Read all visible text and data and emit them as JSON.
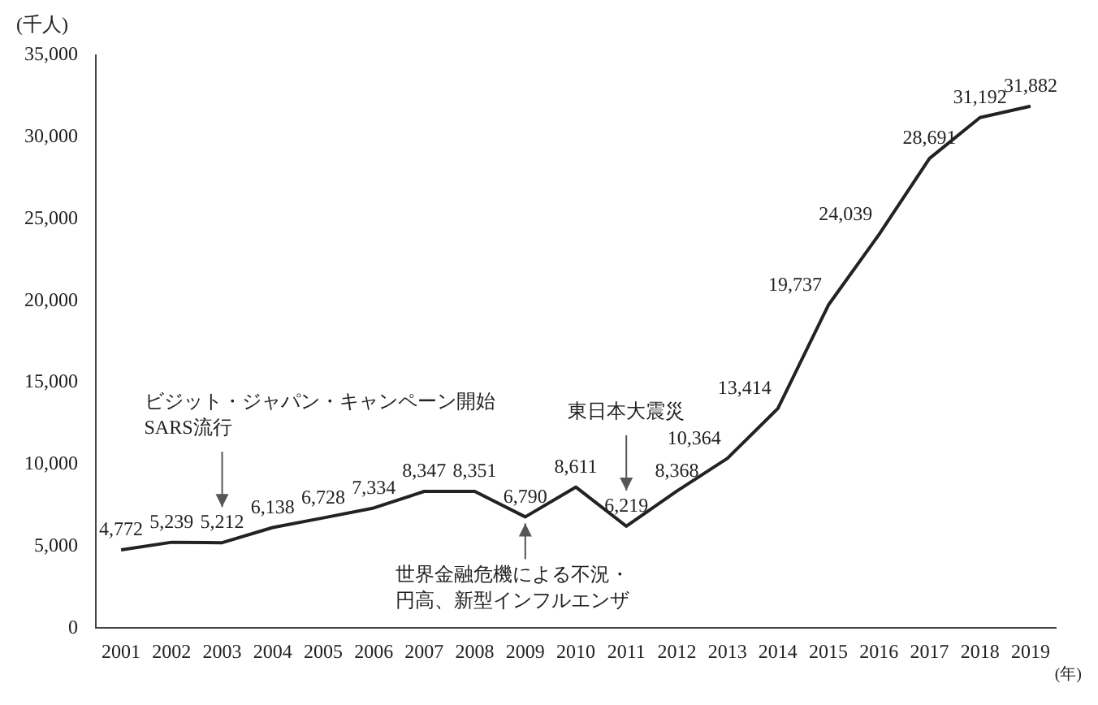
{
  "chart_data": {
    "type": "line",
    "ylabel": "(千人)",
    "xlabel": "(年)",
    "categories": [
      "2001",
      "2002",
      "2003",
      "2004",
      "2005",
      "2006",
      "2007",
      "2008",
      "2009",
      "2010",
      "2011",
      "2012",
      "2013",
      "2014",
      "2015",
      "2016",
      "2017",
      "2018",
      "2019"
    ],
    "series": [
      {
        "color": "#222222",
        "values": [
          4772,
          5239,
          5212,
          6138,
          6728,
          7334,
          8347,
          8351,
          6790,
          8611,
          6219,
          8368,
          10364,
          13414,
          19737,
          24039,
          28691,
          31192,
          31882
        ],
        "value_labels": [
          "4,772",
          "5,239",
          "5,212",
          "6,138",
          "6,728",
          "7,334",
          "8,347",
          "8,351",
          "6,790",
          "8,611",
          "6,219",
          "8,368",
          "10,364",
          "13,414",
          "19,737",
          "24,039",
          "28,691",
          "31,192",
          "31,882"
        ]
      }
    ],
    "ylim": [
      0,
      35000
    ],
    "yticks": [
      {
        "value": 0,
        "label": "0"
      },
      {
        "value": 5000,
        "label": "5,000"
      },
      {
        "value": 10000,
        "label": "10,000"
      },
      {
        "value": 15000,
        "label": "15,000"
      },
      {
        "value": 20000,
        "label": "20,000"
      },
      {
        "value": 25000,
        "label": "25,000"
      },
      {
        "value": 30000,
        "label": "30,000"
      },
      {
        "value": 35000,
        "label": "35,000"
      }
    ],
    "grid": false,
    "legend": false,
    "marker": "none",
    "line_style": "solid",
    "annotations": [
      "ビジット・ジャパン・キャンペーン開始",
      "SARS流行",
      {
        "text": "世界金融危機による不況・円高、新型インフルエンザ",
        "x": "2009",
        "y": 6790
      },
      "東日本大震災"
    ]
  }
}
